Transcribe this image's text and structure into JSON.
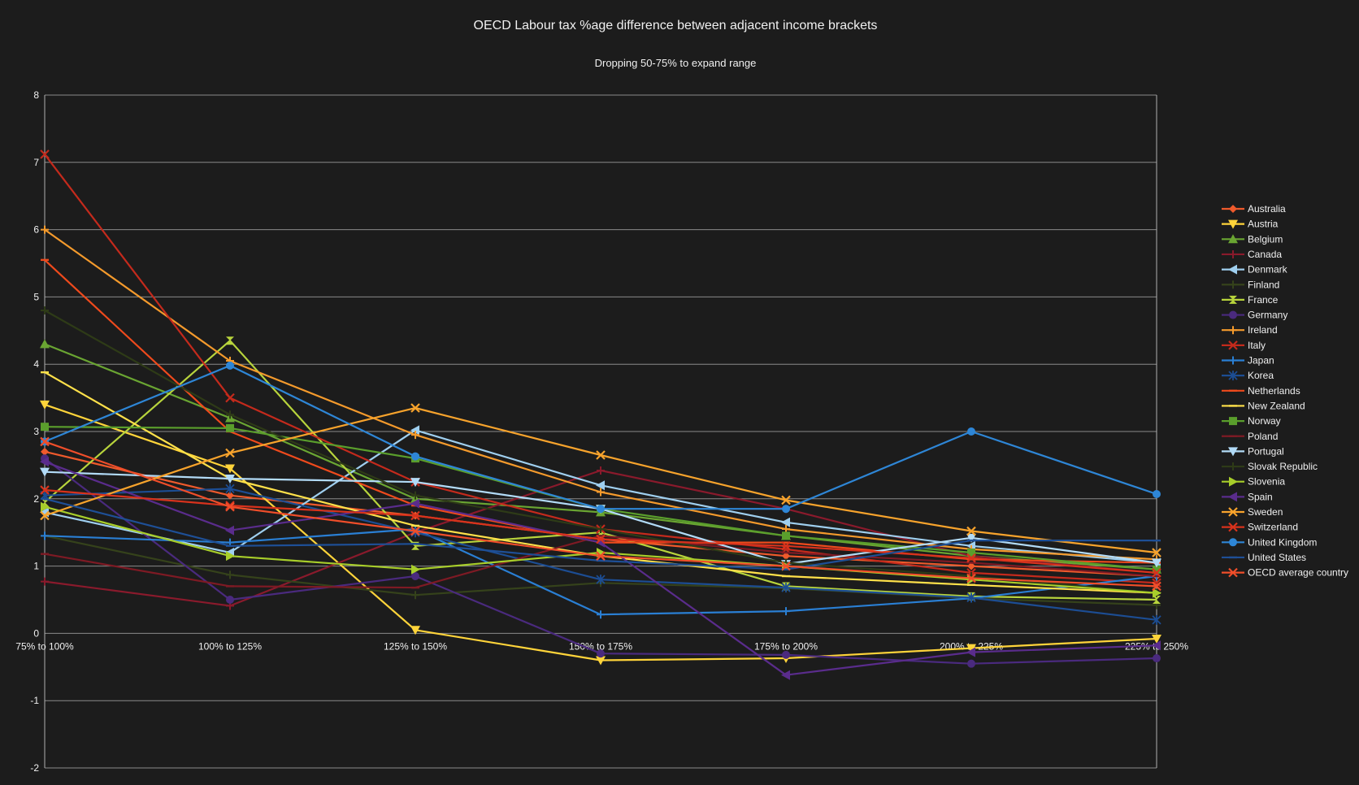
{
  "chart_data": {
    "type": "line",
    "title": "OECD Labour tax %age difference between adjacent income brackets",
    "subtitle": "Dropping 50-75% to expand range",
    "xlabel": "",
    "ylabel": "",
    "ylim": [
      -2,
      8
    ],
    "yticks": [
      8,
      7,
      6,
      5,
      4,
      3,
      2,
      1,
      0,
      -1,
      -2
    ],
    "grid": true,
    "legend_position": "right",
    "categories": [
      "75% to 100%",
      "100% to 125%",
      "125% to 150%",
      "150% to 175%",
      "175% to 200%",
      "200% to 225%",
      "225% to 250%"
    ],
    "series": [
      {
        "name": "Australia",
        "color": "#ef5a2c",
        "marker": "diamond",
        "values": [
          2.7,
          2.05,
          1.75,
          1.4,
          1.15,
          1.0,
          0.85
        ]
      },
      {
        "name": "Austria",
        "color": "#ffd43a",
        "marker": "triangle-down",
        "values": [
          3.4,
          2.45,
          0.05,
          -0.4,
          -0.37,
          -0.22,
          -0.08
        ]
      },
      {
        "name": "Belgium",
        "color": "#6aa532",
        "marker": "triangle-up",
        "values": [
          4.3,
          3.2,
          2.0,
          1.8,
          1.45,
          1.15,
          0.95
        ]
      },
      {
        "name": "Canada",
        "color": "#8a1a2c",
        "marker": "plus",
        "values": [
          0.77,
          0.41,
          1.5,
          2.42,
          1.85,
          1.15,
          0.9
        ]
      },
      {
        "name": "Denmark",
        "color": "#9fcfef",
        "marker": "triangle-left",
        "values": [
          1.8,
          1.2,
          3.02,
          2.2,
          1.65,
          1.3,
          1.05
        ]
      },
      {
        "name": "Finland",
        "color": "#35421b",
        "marker": "plus",
        "values": [
          1.45,
          0.87,
          0.57,
          0.75,
          0.67,
          0.52,
          0.42
        ]
      },
      {
        "name": "France",
        "color": "#b8d43c",
        "marker": "hourglass",
        "values": [
          1.95,
          4.35,
          1.3,
          1.5,
          0.7,
          0.55,
          0.5
        ]
      },
      {
        "name": "Germany",
        "color": "#4a2a7e",
        "marker": "circle",
        "values": [
          2.6,
          0.5,
          0.85,
          -0.3,
          -0.32,
          -0.45,
          -0.37
        ]
      },
      {
        "name": "Ireland",
        "color": "#f49a2c",
        "marker": "plus",
        "values": [
          6.0,
          4.05,
          2.95,
          2.1,
          1.55,
          1.25,
          1.1
        ]
      },
      {
        "name": "Italy",
        "color": "#c42a1c",
        "marker": "x",
        "values": [
          7.12,
          3.5,
          2.25,
          1.55,
          1.25,
          0.9,
          0.75
        ]
      },
      {
        "name": "Japan",
        "color": "#2a7fd4",
        "marker": "plus",
        "values": [
          1.45,
          1.35,
          1.55,
          0.28,
          0.33,
          0.52,
          0.85
        ]
      },
      {
        "name": "Korea",
        "color": "#1c4d93",
        "marker": "star",
        "values": [
          2.05,
          2.15,
          1.5,
          0.8,
          0.68,
          0.53,
          0.2
        ]
      },
      {
        "name": "Netherlands",
        "color": "#ef4a1c",
        "marker": "dash",
        "values": [
          5.55,
          3.0,
          1.9,
          1.35,
          1.35,
          1.1,
          1.05
        ]
      },
      {
        "name": "New Zealand",
        "color": "#ffe14a",
        "marker": "dash",
        "values": [
          3.88,
          2.3,
          1.6,
          1.15,
          0.85,
          0.72,
          0.6
        ]
      },
      {
        "name": "Norway",
        "color": "#5a9e2c",
        "marker": "square",
        "values": [
          3.07,
          3.05,
          2.6,
          1.85,
          1.45,
          1.2,
          0.95
        ]
      },
      {
        "name": "Poland",
        "color": "#7e1a24",
        "marker": "dash",
        "values": [
          1.18,
          0.7,
          0.68,
          1.45,
          1.2,
          1.05,
          0.85
        ]
      },
      {
        "name": "Portugal",
        "color": "#b2dbf7",
        "marker": "triangle-down",
        "values": [
          2.4,
          2.3,
          2.25,
          1.85,
          1.03,
          1.42,
          1.05
        ]
      },
      {
        "name": "Slovak Republic",
        "color": "#2e3b17",
        "marker": "plus",
        "values": [
          4.8,
          3.25,
          2.05,
          1.55,
          1.05,
          0.85,
          0.6
        ]
      },
      {
        "name": "Slovenia",
        "color": "#a8ce2a",
        "marker": "triangle-right",
        "values": [
          1.88,
          1.15,
          0.95,
          1.2,
          1.0,
          0.8,
          0.6
        ]
      },
      {
        "name": "Spain",
        "color": "#5a2c8c",
        "marker": "triangle-left",
        "values": [
          2.55,
          1.53,
          1.93,
          1.35,
          -0.62,
          -0.28,
          -0.18
        ]
      },
      {
        "name": "Sweden",
        "color": "#f7a32c",
        "marker": "x",
        "values": [
          1.75,
          2.68,
          3.35,
          2.65,
          1.98,
          1.52,
          1.2
        ]
      },
      {
        "name": "Switzerland",
        "color": "#d8321c",
        "marker": "x",
        "values": [
          2.13,
          1.9,
          1.75,
          1.4,
          1.3,
          1.12,
          0.9
        ]
      },
      {
        "name": "United Kingdom",
        "color": "#2e86d6",
        "marker": "circle",
        "values": [
          2.85,
          3.98,
          2.63,
          1.85,
          1.85,
          3.0,
          2.07
        ]
      },
      {
        "name": "United States",
        "color": "#1e4f96",
        "marker": "dash",
        "values": [
          2.0,
          1.3,
          1.33,
          1.08,
          0.95,
          1.38,
          1.38
        ]
      },
      {
        "name": "OECD average country",
        "color": "#f04e2a",
        "marker": "x",
        "values": [
          2.85,
          1.88,
          1.52,
          1.15,
          1.0,
          0.82,
          0.7
        ]
      }
    ]
  }
}
